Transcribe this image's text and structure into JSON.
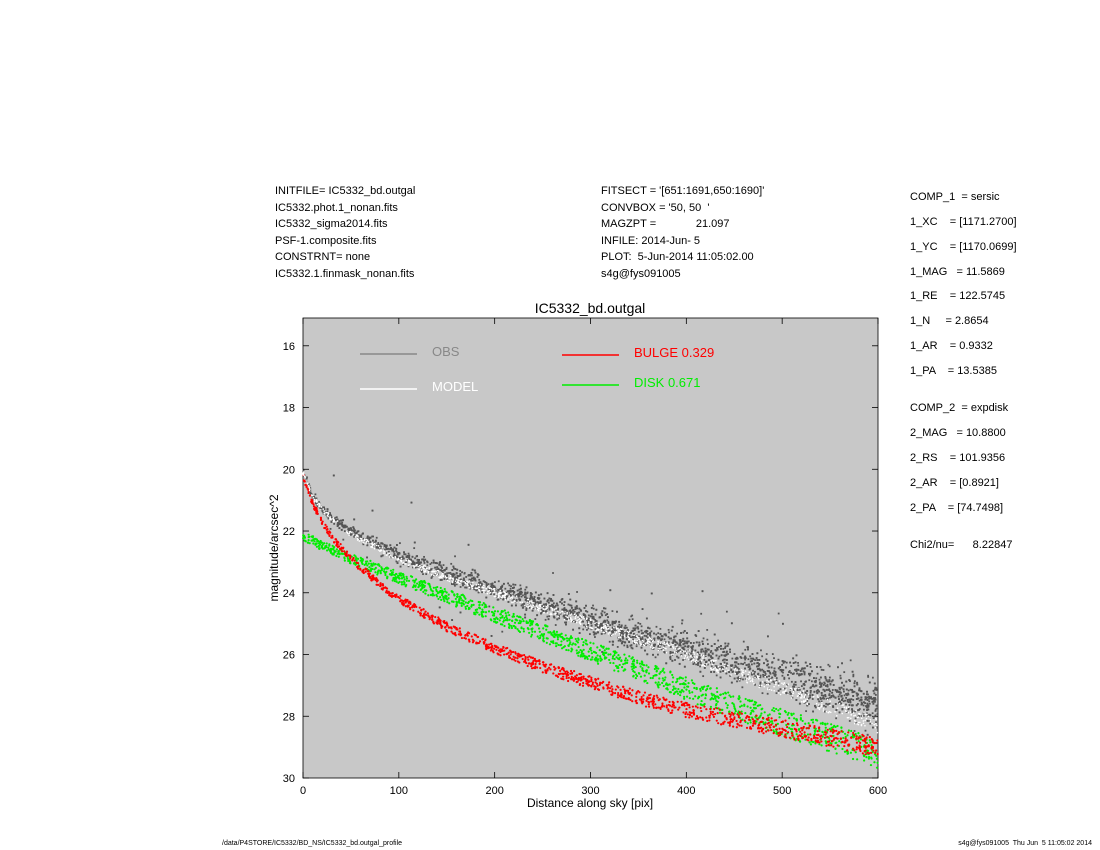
{
  "header": {
    "left_lines": [
      "INITFILE= IC5332_bd.outgal",
      "IC5332.phot.1_nonan.fits",
      "IC5332_sigma2014.fits",
      "PSF-1.composite.fits",
      "CONSTRNT= none",
      "IC5332.1.finmask_nonan.fits"
    ],
    "mid_lines": [
      "FITSECT = '[651:1691,650:1690]'",
      "CONVBOX = '50, 50  '",
      "MAGZPT =             21.097",
      "INFILE: 2014-Jun- 5",
      "PLOT:  5-Jun-2014 11:05:02.00",
      "s4g@fys091005"
    ]
  },
  "components": {
    "comp1_lines": [
      "COMP_1  = sersic",
      "1_XC    = [1171.2700]",
      "1_YC    = [1170.0699]",
      "1_MAG   = 11.5869",
      "1_RE    = 122.5745",
      "1_N     = 2.8654",
      "1_AR    = 0.9332",
      "1_PA    = 13.5385"
    ],
    "comp2_lines": [
      "COMP_2  = expdisk",
      "2_MAG   = 10.8800",
      "2_RS    = 101.9356",
      "2_AR    = [0.8921]",
      "2_PA    = [74.7498]"
    ],
    "chi_line": "Chi2/nu=      8.22847"
  },
  "chart_data": {
    "type": "scatter",
    "title": "IC5332_bd.outgal",
    "xlabel": "Distance along sky [pix]",
    "ylabel": "magnitude/arcsec^2",
    "xlim": [
      0,
      600
    ],
    "ylim": [
      30,
      15.1
    ],
    "y_inverted": true,
    "x_ticks": [
      0,
      100,
      200,
      300,
      400,
      500,
      600
    ],
    "y_ticks": [
      16,
      18,
      20,
      22,
      24,
      26,
      28,
      30
    ],
    "grid": false,
    "plot_background": "#c8c8c8",
    "legend": [
      {
        "label": "OBS",
        "color": "#888888",
        "label_color": "#888888"
      },
      {
        "label": "MODEL",
        "color": "#ffffff",
        "label_color": "#ffffff"
      },
      {
        "label": "BULGE  0.329",
        "color": "#ff0000",
        "label_color": "#ff0000"
      },
      {
        "label": "DISK  0.671",
        "color": "#00ee00",
        "label_color": "#00ee00"
      }
    ],
    "series": [
      {
        "name": "OBS",
        "color": "#555555",
        "x": [
          0,
          10,
          20,
          30,
          50,
          75,
          100,
          150,
          200,
          250,
          300,
          350,
          400,
          450,
          500,
          550,
          600
        ],
        "y": [
          20.0,
          20.9,
          21.3,
          21.6,
          22.0,
          22.4,
          22.8,
          23.4,
          23.9,
          24.4,
          24.9,
          25.4,
          25.8,
          26.3,
          26.7,
          27.2,
          27.6
        ]
      },
      {
        "name": "MODEL",
        "color": "#ffffff",
        "x": [
          0,
          10,
          20,
          30,
          50,
          75,
          100,
          150,
          200,
          250,
          300,
          350,
          400,
          450,
          500,
          550,
          600
        ],
        "y": [
          20.1,
          20.9,
          21.3,
          21.6,
          22.1,
          22.5,
          22.9,
          23.5,
          24.0,
          24.5,
          25.0,
          25.5,
          26.0,
          26.6,
          27.1,
          27.7,
          28.3
        ]
      },
      {
        "name": "BULGE  0.329",
        "color": "#ff0000",
        "x": [
          0,
          10,
          20,
          30,
          50,
          75,
          100,
          150,
          200,
          250,
          300,
          350,
          400,
          450,
          500,
          550,
          600
        ],
        "y": [
          20.2,
          21.1,
          21.7,
          22.2,
          22.9,
          23.6,
          24.2,
          25.1,
          25.8,
          26.4,
          26.9,
          27.4,
          27.8,
          28.1,
          28.4,
          28.7,
          29.0
        ]
      },
      {
        "name": "DISK  0.671",
        "color": "#00ee00",
        "x": [
          0,
          10,
          20,
          30,
          50,
          75,
          100,
          150,
          200,
          250,
          300,
          350,
          400,
          450,
          500,
          550,
          600
        ],
        "y": [
          22.2,
          22.3,
          22.5,
          22.6,
          22.9,
          23.2,
          23.5,
          24.1,
          24.7,
          25.3,
          25.9,
          26.5,
          27.1,
          27.7,
          28.2,
          28.7,
          29.2
        ]
      }
    ]
  },
  "footer": {
    "left": "/data/P4STORE/IC5332/BD_NS/IC5332_bd.outgal_profile",
    "right": "s4g@fys091005  Thu Jun  5 11:05:02 2014"
  }
}
